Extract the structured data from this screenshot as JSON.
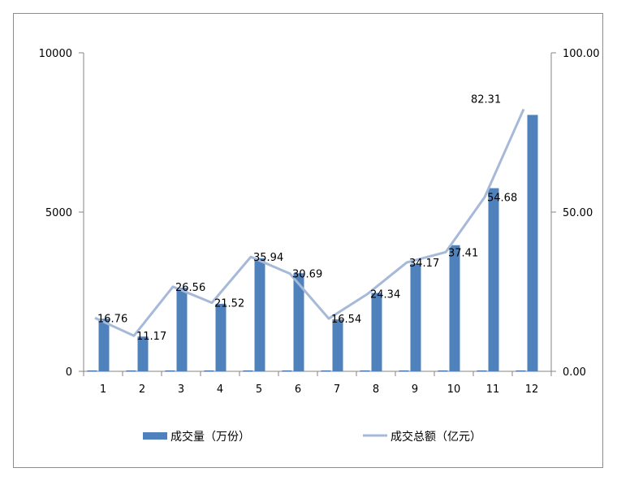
{
  "chart_data": {
    "type": "bar+line",
    "categories": [
      "1",
      "2",
      "3",
      "4",
      "5",
      "6",
      "7",
      "8",
      "9",
      "10",
      "11",
      "12"
    ],
    "series": [
      {
        "name": "成交量（万份）",
        "type": "bar",
        "axis": "left",
        "color": "#4f81bd",
        "values": [
          1650,
          1090,
          2620,
          2120,
          3550,
          3080,
          1630,
          2460,
          3380,
          3960,
          5750,
          8050
        ]
      },
      {
        "name": "成交总额（亿元）",
        "type": "line",
        "axis": "right",
        "color": "#a6b9d8",
        "values": [
          16.76,
          11.17,
          26.56,
          21.52,
          35.94,
          30.69,
          16.54,
          24.34,
          34.17,
          37.41,
          54.68,
          82.31
        ],
        "labels": [
          "16.76",
          "11.17",
          "26.56",
          "21.52",
          "35.94",
          "30.69",
          "16.54",
          "24.34",
          "34.17",
          "37.41",
          "54.68",
          "82.31"
        ]
      }
    ],
    "y_left": {
      "min": 0,
      "max": 10000,
      "ticks": [
        "0",
        "5000",
        "10000"
      ]
    },
    "y_right": {
      "min": 0,
      "max": 100,
      "ticks": [
        "0.00",
        "50.00",
        "100.00"
      ]
    },
    "grid": false,
    "legend_position": "bottom"
  }
}
